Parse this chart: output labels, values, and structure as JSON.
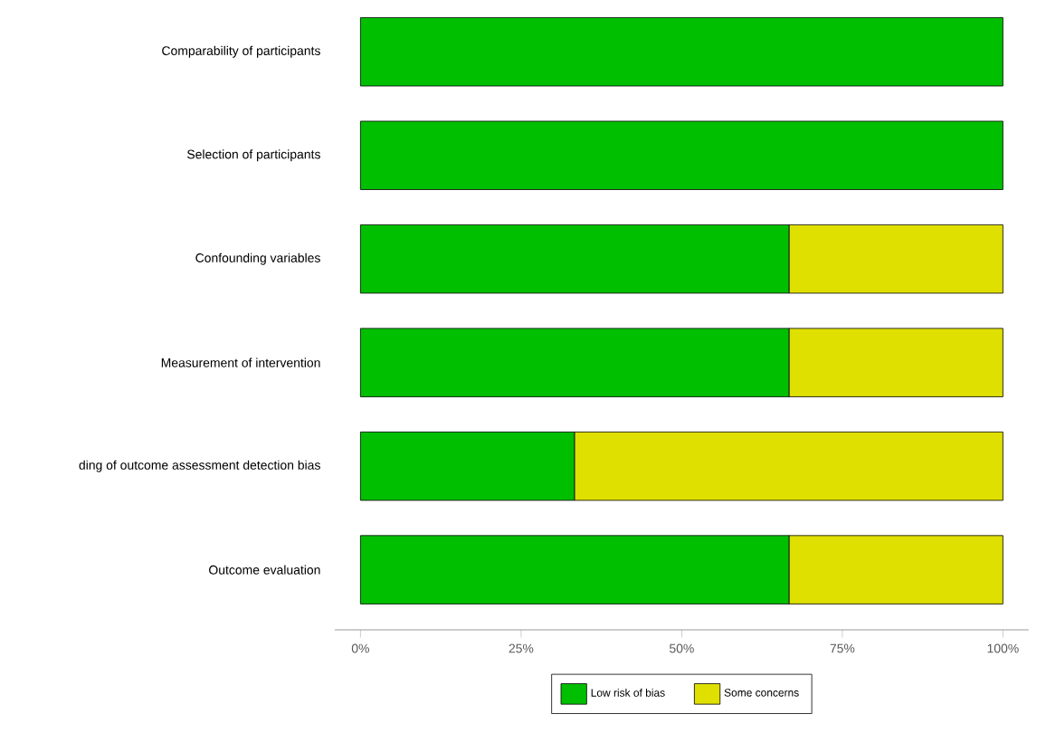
{
  "chart_data": {
    "type": "bar",
    "orientation": "horizontal",
    "stacked": true,
    "categories": [
      "Comparability of participants",
      "Selection of participants",
      "Confounding variables",
      "Measurement of intervention",
      "ding of outcome assessment  detection bias",
      "Outcome evaluation"
    ],
    "series": [
      {
        "name": "Low risk of bias",
        "color": "#00bf00",
        "values": [
          100,
          100,
          66.7,
          66.7,
          33.3,
          66.7
        ]
      },
      {
        "name": "Some concerns",
        "color": "#e0e000",
        "values": [
          0,
          0,
          33.3,
          33.3,
          66.7,
          33.3
        ]
      }
    ],
    "xlim": [
      -4,
      104
    ],
    "xticks": [
      {
        "value": 0,
        "label": "0%"
      },
      {
        "value": 25,
        "label": "25%"
      },
      {
        "value": 50,
        "label": "50%"
      },
      {
        "value": 75,
        "label": "75%"
      },
      {
        "value": 100,
        "label": "100%"
      }
    ],
    "legend": "bottom",
    "grid": false
  }
}
